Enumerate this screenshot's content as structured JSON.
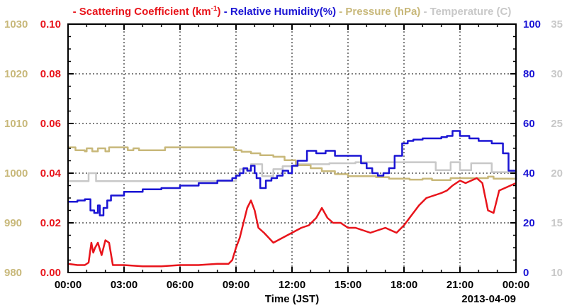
{
  "chart_data": {
    "type": "line",
    "title": "",
    "xlabel": "Time (JST)",
    "date_label": "2013-04-09",
    "x_ticks": [
      "00:00",
      "03:00",
      "06:00",
      "09:00",
      "12:00",
      "15:00",
      "18:00",
      "21:00",
      "00:00"
    ],
    "x_hours_range": [
      0,
      24
    ],
    "grid": true,
    "legend_position": "top",
    "axes": {
      "scattering": {
        "label": "Scattering Coefficient (km-1)",
        "ylim": [
          0,
          0.1
        ],
        "ticks": [
          "0.00",
          "0.02",
          "0.04",
          "0.06",
          "0.08",
          "0.10"
        ],
        "color": "#e8141b",
        "side": "left-inner"
      },
      "pressure": {
        "label": "Pressure (hPa)",
        "ylim": [
          980,
          1030
        ],
        "ticks": [
          "980",
          "990",
          "1000",
          "1010",
          "1020",
          "1030"
        ],
        "color": "#c8b87a",
        "side": "left-outer"
      },
      "humidity": {
        "label": "Relative Humidity(%)",
        "ylim": [
          0,
          100
        ],
        "ticks": [
          "0",
          "20",
          "40",
          "60",
          "80",
          "100"
        ],
        "color": "#1a14d4",
        "side": "right-inner"
      },
      "temperature": {
        "label": "Temperature (C)",
        "ylim": [
          10,
          35
        ],
        "ticks": [
          "10",
          "15",
          "20",
          "25",
          "30",
          "35"
        ],
        "color": "#c8c8c8",
        "side": "right-outer"
      }
    },
    "legend": [
      {
        "prefix": "-",
        "text": "Scattering Coefficient (km",
        "sup": "-1",
        "suffix": ")",
        "color": "#e8141b"
      },
      {
        "prefix": "-",
        "text": "Relative Humidity(%)",
        "color": "#1a14d4"
      },
      {
        "prefix": "-",
        "text": "Pressure (hPa)",
        "color": "#c8b87a"
      },
      {
        "prefix": "-",
        "text": "Temperature (C)",
        "color": "#c8c8c8"
      }
    ],
    "series": [
      {
        "name": "Temperature (C)",
        "axis": "temperature",
        "color": "#c8c8c8",
        "step": true,
        "x": [
          0,
          1.0,
          1.1,
          1.4,
          1.5,
          8.8,
          9.0,
          9.2,
          9.8,
          10.2,
          10.4,
          10.9,
          11.0,
          11.4,
          11.5,
          12.1,
          12.3,
          13.8,
          14.0,
          15.2,
          15.4,
          19.5,
          19.7,
          20.3,
          20.5,
          20.8,
          21.0,
          21.4,
          21.6,
          22.5,
          22.7,
          24.0
        ],
        "y": [
          19.2,
          19.2,
          20.0,
          20.0,
          19.2,
          19.2,
          19.8,
          20.4,
          20.9,
          20.9,
          19.7,
          19.7,
          20.4,
          20.4,
          20.7,
          20.7,
          20.9,
          20.9,
          21.0,
          21.0,
          21.1,
          21.1,
          20.3,
          20.3,
          21.1,
          21.1,
          20.3,
          20.3,
          21.0,
          21.0,
          20.1,
          20.1
        ]
      },
      {
        "name": "Pressure (hPa)",
        "axis": "pressure",
        "color": "#c8b87a",
        "step": true,
        "x": [
          0,
          0.4,
          0.9,
          1.0,
          1.3,
          1.6,
          1.9,
          2.0,
          2.2,
          2.6,
          3.2,
          3.5,
          3.8,
          5.2,
          8.9,
          9.3,
          9.8,
          10.3,
          11.0,
          11.6,
          12.2,
          13.0,
          13.6,
          14.3,
          15.0,
          16.5,
          17.2,
          18.3,
          19.0,
          19.5,
          20.5,
          21.0,
          22.5,
          22.8,
          24.0
        ],
        "y": [
          1005.2,
          1004.6,
          1004.4,
          1005.0,
          1004.4,
          1005.0,
          1005.0,
          1004.4,
          1005.2,
          1005.2,
          1004.6,
          1005.0,
          1004.6,
          1005.2,
          1004.6,
          1004.3,
          1004.0,
          1003.6,
          1003.3,
          1002.6,
          1001.6,
          1001.0,
          1000.4,
          999.8,
          999.4,
          999.2,
          998.9,
          998.7,
          998.9,
          998.6,
          999.0,
          999.0,
          999.3,
          998.9,
          999.0
        ]
      },
      {
        "name": "Relative Humidity(%)",
        "axis": "humidity",
        "color": "#1a14d4",
        "step": true,
        "x": [
          0,
          0.5,
          0.9,
          1.1,
          1.2,
          1.4,
          1.6,
          1.7,
          1.9,
          2.1,
          2.3,
          3.0,
          4.0,
          5.0,
          6.0,
          7.0,
          8.0,
          8.8,
          9.0,
          9.2,
          9.4,
          9.6,
          9.8,
          10.0,
          10.1,
          10.3,
          10.6,
          10.9,
          11.2,
          11.5,
          11.8,
          12.0,
          12.3,
          12.8,
          13.3,
          13.8,
          14.3,
          14.8,
          15.3,
          15.7,
          16.0,
          16.3,
          16.6,
          16.9,
          17.2,
          17.5,
          17.9,
          18.2,
          18.5,
          19.0,
          19.5,
          20.0,
          20.3,
          20.6,
          21.0,
          21.5,
          22.0,
          22.4,
          22.7,
          23.0,
          23.3,
          23.6,
          24.0
        ],
        "y": [
          28.5,
          29,
          29.5,
          29.5,
          25,
          24,
          27,
          23,
          26,
          29,
          31,
          32.5,
          33.5,
          34,
          35,
          36,
          37,
          38,
          39,
          40,
          42,
          41,
          43,
          40,
          38,
          34,
          37,
          38,
          39,
          41,
          40,
          43,
          45,
          49,
          48,
          49,
          47,
          47,
          47,
          44,
          42,
          40,
          39,
          40,
          42,
          47,
          52,
          53,
          53.5,
          54,
          54,
          54.5,
          55,
          57,
          55,
          54,
          53,
          53,
          52,
          52,
          48,
          41,
          37
        ]
      },
      {
        "name": "Scattering Coefficient (km-1)",
        "axis": "scattering",
        "color": "#e8141b",
        "step": false,
        "x": [
          0,
          0.5,
          0.9,
          1.1,
          1.25,
          1.35,
          1.45,
          1.6,
          1.8,
          2.0,
          2.2,
          2.4,
          2.6,
          3.0,
          4.0,
          5.0,
          6.0,
          7.0,
          8.0,
          8.6,
          8.8,
          9.0,
          9.2,
          9.4,
          9.6,
          9.8,
          10.0,
          10.2,
          10.5,
          11.0,
          11.5,
          12.0,
          12.5,
          12.9,
          13.3,
          13.6,
          13.9,
          14.2,
          14.6,
          15.0,
          15.4,
          15.8,
          16.2,
          16.6,
          17.0,
          17.3,
          17.6,
          18.0,
          18.4,
          18.8,
          19.2,
          19.6,
          20.0,
          20.3,
          20.6,
          21.0,
          21.3,
          21.6,
          21.9,
          22.2,
          22.5,
          22.8,
          23.1,
          23.4,
          23.7,
          24.0
        ],
        "y": [
          0.0035,
          0.003,
          0.003,
          0.004,
          0.012,
          0.008,
          0.01,
          0.012,
          0.007,
          0.013,
          0.012,
          0.003,
          0.003,
          0.003,
          0.0025,
          0.0025,
          0.003,
          0.003,
          0.0035,
          0.0035,
          0.005,
          0.01,
          0.014,
          0.02,
          0.026,
          0.029,
          0.025,
          0.018,
          0.016,
          0.012,
          0.014,
          0.016,
          0.018,
          0.019,
          0.022,
          0.026,
          0.022,
          0.02,
          0.02,
          0.018,
          0.018,
          0.017,
          0.016,
          0.017,
          0.018,
          0.017,
          0.016,
          0.019,
          0.023,
          0.027,
          0.03,
          0.031,
          0.032,
          0.033,
          0.035,
          0.037,
          0.036,
          0.037,
          0.038,
          0.036,
          0.025,
          0.024,
          0.033,
          0.034,
          0.035,
          0.036
        ]
      }
    ]
  }
}
